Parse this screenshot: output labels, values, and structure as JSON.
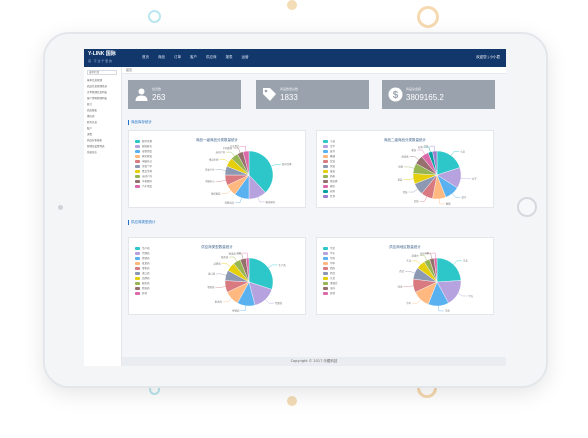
{
  "header": {
    "logo": "Y-LINK 国际",
    "logo_sub": "哥 · 不 过 千 里 的",
    "nav": [
      "首页",
      "商品",
      "订单",
      "客户",
      "供应商",
      "报表",
      "运营"
    ],
    "user": "欢迎您 | 小小君"
  },
  "sidebar": {
    "title": "菜单栏目",
    "items": [
      "基本信息管理",
      "商品信息管理目录",
      "订单管理信息列表",
      "客户资料管理列表",
      "统计",
      "商品报表",
      "供应商",
      "财务信息",
      "账户",
      "流程",
      "商品分析报表",
      "管理员设置列表",
      "系统日志"
    ]
  },
  "breadcrumb": "首页",
  "stats": [
    {
      "label": "会员数",
      "value": "263",
      "icon": "user-icon"
    },
    {
      "label": "商品数量总数",
      "value": "1833",
      "icon": "tag-icon"
    },
    {
      "label": "商品总金额",
      "value": "3809165.2",
      "icon": "dollar-icon"
    }
  ],
  "sections": {
    "top": "商品库存统计",
    "bottom": "供应商类型统计"
  },
  "footer": "Copyright © 2017 乐耀科技",
  "colors": {
    "topbar": "#11376b",
    "stat_card": "#9aa2ad",
    "accent": "#1e73c8"
  },
  "chart_data": [
    {
      "type": "pie",
      "title": "商品一级商品分类数量统计",
      "categories": [
        "图书音像",
        "服饰鞋包",
        "母婴用品",
        "家居家装",
        "电脑办公",
        "美妆个护",
        "食品生鲜",
        "运动户外",
        "手机数码",
        "汽车用品"
      ],
      "values": [
        38,
        12,
        10,
        8,
        7,
        6,
        6,
        5,
        4,
        4
      ]
    },
    {
      "type": "pie",
      "title": "商品二级商品分类数量统计",
      "categories": [
        "小说",
        "文学",
        "童书",
        "教辅",
        "女装",
        "男装",
        "童装",
        "奶粉",
        "纸尿裤",
        "家纺",
        "厨具",
        "灯具"
      ],
      "values": [
        20,
        14,
        10,
        9,
        8,
        8,
        7,
        7,
        6,
        5,
        3,
        3
      ]
    },
    {
      "type": "pie",
      "title": "供应商类型数量统计",
      "categories": [
        "生产商",
        "代理商",
        "经销商",
        "批发商",
        "零售商",
        "进口商",
        "品牌商",
        "服务商",
        "物流商",
        "其他"
      ],
      "values": [
        30,
        16,
        12,
        10,
        8,
        7,
        6,
        5,
        4,
        2
      ]
    },
    {
      "type": "pie",
      "title": "供应商地区数量统计",
      "categories": [
        "华北",
        "华东",
        "华南",
        "华中",
        "西南",
        "西北",
        "东北",
        "港澳台",
        "海外",
        "其他"
      ],
      "values": [
        24,
        18,
        14,
        12,
        9,
        8,
        6,
        4,
        3,
        2
      ]
    }
  ]
}
